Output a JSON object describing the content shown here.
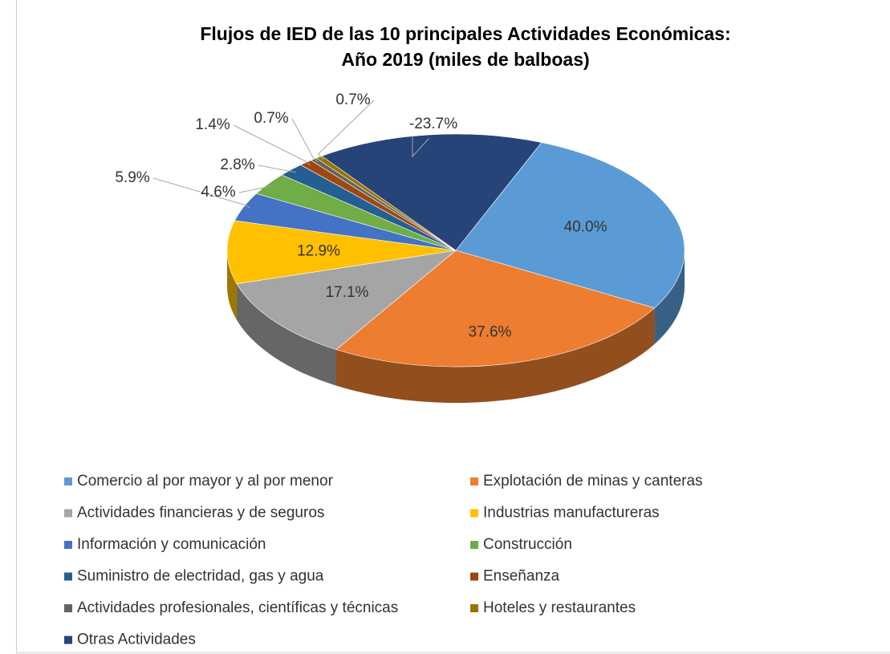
{
  "chart_data": {
    "type": "pie3d",
    "title": [
      "Flujos de IED de las 10 principales Actividades Económicas:",
      "Año 2019 (miles de balboas)"
    ],
    "categories": [
      "Comercio al por mayor y al por menor",
      "Explotación de minas y canteras",
      "Actividades financieras y de seguros",
      "Industrias manufactureras",
      "Información y comunicación",
      "Construcción",
      "Suministro de electridad, gas y agua",
      "Enseñanza",
      "Actividades profesionales, científicas y técnicas",
      "Hoteles y restaurantes",
      "Otras Actividades"
    ],
    "values": [
      40.0,
      37.6,
      17.1,
      12.9,
      5.9,
      4.6,
      2.8,
      1.4,
      0.7,
      0.7,
      -23.7
    ],
    "value_labels": [
      "40.0%",
      "37.6%",
      "17.1%",
      "12.9%",
      "5.9%",
      "4.6%",
      "2.8%",
      "1.4%",
      "0.7%",
      "0.7%",
      "-23.7%"
    ],
    "colors": [
      "#5b9bd5",
      "#ed7d31",
      "#a5a5a5",
      "#ffc000",
      "#4472c4",
      "#70ad47",
      "#255e91",
      "#9e480e",
      "#636363",
      "#997300",
      "#264478"
    ],
    "legend": "bottom"
  }
}
